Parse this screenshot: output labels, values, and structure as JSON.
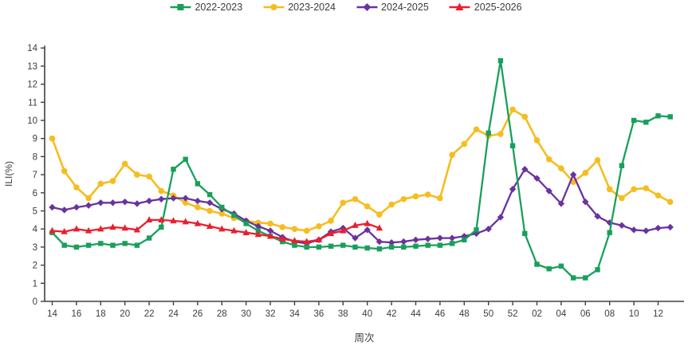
{
  "legend": [
    {
      "label": "2022-2023",
      "color": "#18a05a",
      "marker": "square"
    },
    {
      "label": "2023-2024",
      "color": "#f5bd1f",
      "marker": "circle"
    },
    {
      "label": "2024-2025",
      "color": "#6a329f",
      "marker": "diamond"
    },
    {
      "label": "2025-2026",
      "color": "#e8202e",
      "marker": "triangle"
    }
  ],
  "axes": {
    "y_label": "ILI(%)",
    "x_label": "周次",
    "y_min": 0,
    "y_max": 14,
    "y_step": 1
  },
  "chart_data": {
    "type": "line",
    "title": "",
    "xlabel": "周次",
    "ylabel": "ILI(%)",
    "ylim": [
      0,
      14
    ],
    "grid": false,
    "legend_position": "top-center",
    "x_tick_every": 2,
    "weeks": [
      "14",
      "15",
      "16",
      "17",
      "18",
      "19",
      "20",
      "21",
      "22",
      "23",
      "24",
      "25",
      "26",
      "27",
      "28",
      "29",
      "30",
      "31",
      "32",
      "33",
      "34",
      "35",
      "36",
      "37",
      "38",
      "39",
      "40",
      "41",
      "42",
      "43",
      "44",
      "45",
      "46",
      "47",
      "48",
      "49",
      "50",
      "51",
      "52",
      "01",
      "02",
      "03",
      "04",
      "05",
      "06",
      "07",
      "08",
      "09",
      "10",
      "11",
      "12",
      "13"
    ],
    "series": [
      {
        "name": "2023-2024",
        "color": "#f5bd1f",
        "marker": "circle",
        "values": [
          9.0,
          7.2,
          6.3,
          5.7,
          6.5,
          6.65,
          7.6,
          7.0,
          6.9,
          6.1,
          5.85,
          5.45,
          5.2,
          5.0,
          4.85,
          4.6,
          4.45,
          4.35,
          4.3,
          4.1,
          4.0,
          3.9,
          4.15,
          4.45,
          5.45,
          5.65,
          5.25,
          4.8,
          5.35,
          5.65,
          5.8,
          5.9,
          5.7,
          8.1,
          8.7,
          9.5,
          9.15,
          9.25,
          10.6,
          10.2,
          8.9,
          7.85,
          7.35,
          6.6,
          7.1,
          7.8,
          6.2,
          5.7,
          6.2,
          6.25,
          5.85,
          5.5
        ]
      },
      {
        "name": "2024-2025",
        "color": "#6a329f",
        "marker": "diamond",
        "values": [
          5.2,
          5.05,
          5.2,
          5.3,
          5.45,
          5.45,
          5.5,
          5.4,
          5.55,
          5.65,
          5.7,
          5.7,
          5.55,
          5.45,
          5.1,
          4.85,
          4.45,
          4.15,
          3.9,
          3.55,
          3.3,
          3.2,
          3.4,
          3.85,
          4.05,
          3.5,
          3.95,
          3.3,
          3.25,
          3.3,
          3.4,
          3.45,
          3.5,
          3.5,
          3.6,
          3.75,
          4.0,
          4.65,
          6.2,
          7.3,
          6.8,
          6.1,
          5.4,
          7.0,
          5.5,
          4.7,
          4.35,
          4.2,
          3.95,
          3.9,
          4.05,
          4.1
        ]
      },
      {
        "name": "2022-2023",
        "color": "#18a05a",
        "marker": "square",
        "values": [
          3.8,
          3.1,
          3.0,
          3.1,
          3.2,
          3.1,
          3.2,
          3.1,
          3.5,
          4.1,
          7.3,
          7.85,
          6.5,
          5.9,
          5.2,
          4.75,
          4.3,
          3.9,
          3.6,
          3.3,
          3.1,
          3.0,
          3.0,
          3.05,
          3.1,
          3.0,
          2.95,
          2.9,
          3.0,
          3.0,
          3.05,
          3.1,
          3.1,
          3.2,
          3.4,
          3.95,
          9.3,
          13.3,
          8.6,
          3.75,
          2.05,
          1.8,
          1.95,
          1.3,
          1.3,
          1.75,
          3.8,
          7.5,
          10.0,
          9.9,
          10.25,
          10.2
        ]
      },
      {
        "name": "2025-2026",
        "color": "#e8202e",
        "marker": "triangle",
        "values": [
          3.9,
          3.85,
          4.0,
          3.9,
          4.0,
          4.1,
          4.05,
          3.95,
          4.5,
          4.5,
          4.45,
          4.4,
          4.3,
          4.15,
          4.0,
          3.9,
          3.8,
          3.7,
          3.6,
          3.45,
          3.35,
          3.3,
          3.4,
          3.75,
          3.9,
          4.2,
          4.3,
          4.05
        ]
      }
    ]
  }
}
